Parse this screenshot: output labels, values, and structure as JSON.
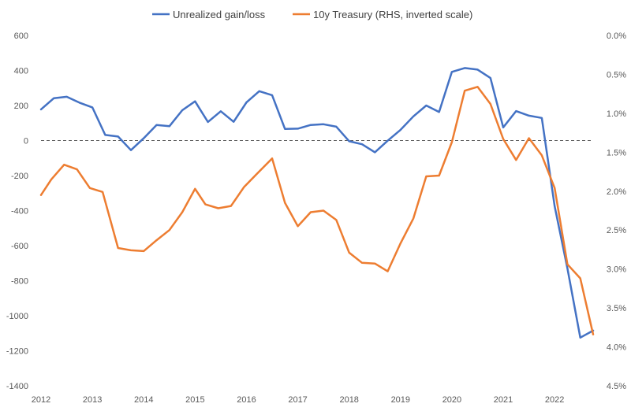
{
  "chart_data": {
    "type": "line",
    "title": "",
    "legend_position": "top",
    "grid": false,
    "x_ticks": [
      "2012",
      "2013",
      "2014",
      "2015",
      "2016",
      "2017",
      "2018",
      "2019",
      "2020",
      "2021",
      "2022"
    ],
    "y_left": {
      "range": [
        -1400,
        600
      ],
      "ticks": [
        "600",
        "400",
        "200",
        "0",
        "-200",
        "-400",
        "-600",
        "-800",
        "-1000",
        "-1200",
        "-1400"
      ],
      "reference_line": 0
    },
    "y_right": {
      "range": [
        0.0,
        4.5
      ],
      "inverted": true,
      "ticks": [
        "0.0%",
        "0.5%",
        "1.0%",
        "1.5%",
        "2.0%",
        "2.5%",
        "3.0%",
        "3.5%",
        "4.0%",
        "4.5%"
      ]
    },
    "series": [
      {
        "name": "Unrealized gain/loss",
        "axis": "left",
        "color": "#4472C4",
        "x": [
          2012.0,
          2012.25,
          2012.5,
          2012.75,
          2013.0,
          2013.25,
          2013.5,
          2013.75,
          2014.0,
          2014.25,
          2014.5,
          2014.75,
          2015.0,
          2015.25,
          2015.5,
          2015.75,
          2016.0,
          2016.25,
          2016.5,
          2016.75,
          2017.0,
          2017.25,
          2017.5,
          2017.75,
          2018.0,
          2018.25,
          2018.5,
          2018.75,
          2019.0,
          2019.25,
          2019.5,
          2019.75,
          2020.0,
          2020.25,
          2020.5,
          2020.75,
          2021.0,
          2021.25,
          2021.5,
          2021.75,
          2022.0,
          2022.25,
          2022.5,
          2022.75
        ],
        "values": [
          178,
          242,
          250,
          216,
          189,
          32,
          23,
          -55,
          13,
          89,
          82,
          173,
          224,
          106,
          167,
          107,
          218,
          282,
          259,
          66,
          68,
          89,
          93,
          79,
          -4,
          -21,
          -67,
          -1,
          61,
          138,
          200,
          163,
          392,
          414,
          405,
          357,
          75,
          168,
          142,
          129,
          -375,
          -730,
          -1125,
          -1085
        ]
      },
      {
        "name": "10y Treasury (RHS, inverted scale)",
        "axis": "right",
        "color": "#ED7D31",
        "x": [
          2012.0,
          2012.2,
          2012.45,
          2012.7,
          2012.95,
          2013.2,
          2013.5,
          2013.75,
          2014.0,
          2014.25,
          2014.5,
          2014.75,
          2015.0,
          2015.2,
          2015.45,
          2015.7,
          2015.95,
          2016.2,
          2016.5,
          2016.75,
          2017.0,
          2017.25,
          2017.5,
          2017.75,
          2018.0,
          2018.25,
          2018.5,
          2018.75,
          2019.0,
          2019.25,
          2019.5,
          2019.75,
          2020.0,
          2020.25,
          2020.5,
          2020.75,
          2021.0,
          2021.25,
          2021.5,
          2021.75,
          2022.0,
          2022.25,
          2022.5,
          2022.75
        ],
        "values": [
          2.05,
          1.85,
          1.66,
          1.72,
          1.96,
          2.01,
          2.73,
          2.76,
          2.77,
          2.63,
          2.5,
          2.27,
          1.97,
          2.17,
          2.22,
          2.19,
          1.95,
          1.78,
          1.58,
          2.15,
          2.45,
          2.27,
          2.25,
          2.37,
          2.79,
          2.92,
          2.93,
          3.03,
          2.67,
          2.35,
          1.81,
          1.8,
          1.37,
          0.71,
          0.66,
          0.88,
          1.33,
          1.6,
          1.32,
          1.54,
          1.96,
          2.94,
          3.12,
          3.84
        ]
      }
    ]
  }
}
